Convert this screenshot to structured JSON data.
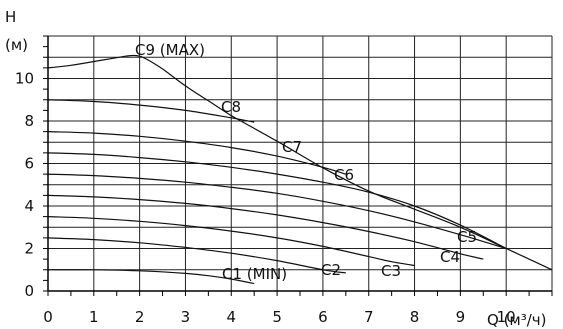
{
  "chart_data": {
    "type": "line",
    "xlabel": "Q (м³/ч)",
    "ylabel": "H",
    "ylabel_unit": "(м)",
    "xlim": [
      0,
      11
    ],
    "ylim": [
      0,
      12
    ],
    "x_ticks": [
      0,
      1,
      2,
      3,
      4,
      5,
      6,
      7,
      8,
      9,
      10
    ],
    "y_ticks": [
      0,
      2,
      4,
      6,
      8,
      10
    ],
    "grid": true,
    "colors": {
      "line": "#111111",
      "grid": "#222222",
      "background": "#ffffff"
    },
    "series": [
      {
        "name": "C1 (MIN)",
        "x": [
          0,
          1,
          2,
          3,
          3.5,
          4,
          4.5
        ],
        "y": [
          1.0,
          1.0,
          0.95,
          0.83,
          0.72,
          0.56,
          0.35
        ]
      },
      {
        "name": "C2",
        "x": [
          0,
          1,
          2,
          3,
          4,
          5,
          6,
          6.5
        ],
        "y": [
          2.5,
          2.42,
          2.27,
          2.05,
          1.78,
          1.43,
          1.0,
          0.85
        ]
      },
      {
        "name": "C3",
        "x": [
          0,
          1,
          2,
          3,
          4,
          5,
          6,
          7,
          7.5,
          8
        ],
        "y": [
          3.5,
          3.42,
          3.28,
          3.08,
          2.82,
          2.5,
          2.1,
          1.62,
          1.38,
          1.2
        ]
      },
      {
        "name": "C4",
        "x": [
          0,
          1,
          2,
          3,
          4,
          5,
          6,
          7,
          8,
          9,
          9.5
        ],
        "y": [
          4.5,
          4.43,
          4.3,
          4.12,
          3.88,
          3.58,
          3.22,
          2.8,
          2.32,
          1.75,
          1.5
        ]
      },
      {
        "name": "C5",
        "x": [
          0,
          1,
          2,
          3,
          4,
          5,
          6,
          7,
          8,
          9,
          10
        ],
        "y": [
          5.5,
          5.43,
          5.3,
          5.12,
          4.88,
          4.6,
          4.22,
          3.78,
          3.25,
          2.65,
          2.0
        ]
      },
      {
        "name": "C6",
        "x": [
          0,
          1,
          2,
          3,
          4,
          5,
          6,
          7,
          8,
          9,
          10
        ],
        "y": [
          6.5,
          6.43,
          6.28,
          6.08,
          5.82,
          5.5,
          5.12,
          4.65,
          4.0,
          3.1,
          2.0
        ]
      },
      {
        "name": "C7",
        "x": [
          0,
          1,
          2,
          3,
          4,
          5,
          6,
          6.5
        ],
        "y": [
          7.5,
          7.43,
          7.28,
          7.05,
          6.75,
          6.35,
          5.82,
          5.5
        ]
      },
      {
        "name": "C8",
        "x": [
          0,
          1,
          2,
          3,
          4,
          4.5
        ],
        "y": [
          9.0,
          8.92,
          8.75,
          8.5,
          8.15,
          7.95
        ]
      },
      {
        "name": "C9 (MAX)",
        "x": [
          0,
          0.5,
          1,
          1.5,
          1.8,
          2.0,
          2.2,
          2.5,
          3,
          3.5,
          4
        ],
        "y": [
          10.5,
          10.62,
          10.8,
          10.98,
          11.08,
          11.05,
          10.85,
          10.45,
          9.65,
          8.95,
          8.25
        ]
      },
      {
        "name": "",
        "x": [
          4,
          5,
          6,
          7,
          8,
          9,
          10,
          11
        ],
        "y": [
          8.25,
          7.05,
          5.8,
          4.7,
          3.85,
          3.0,
          2.0,
          1.0
        ]
      }
    ]
  }
}
